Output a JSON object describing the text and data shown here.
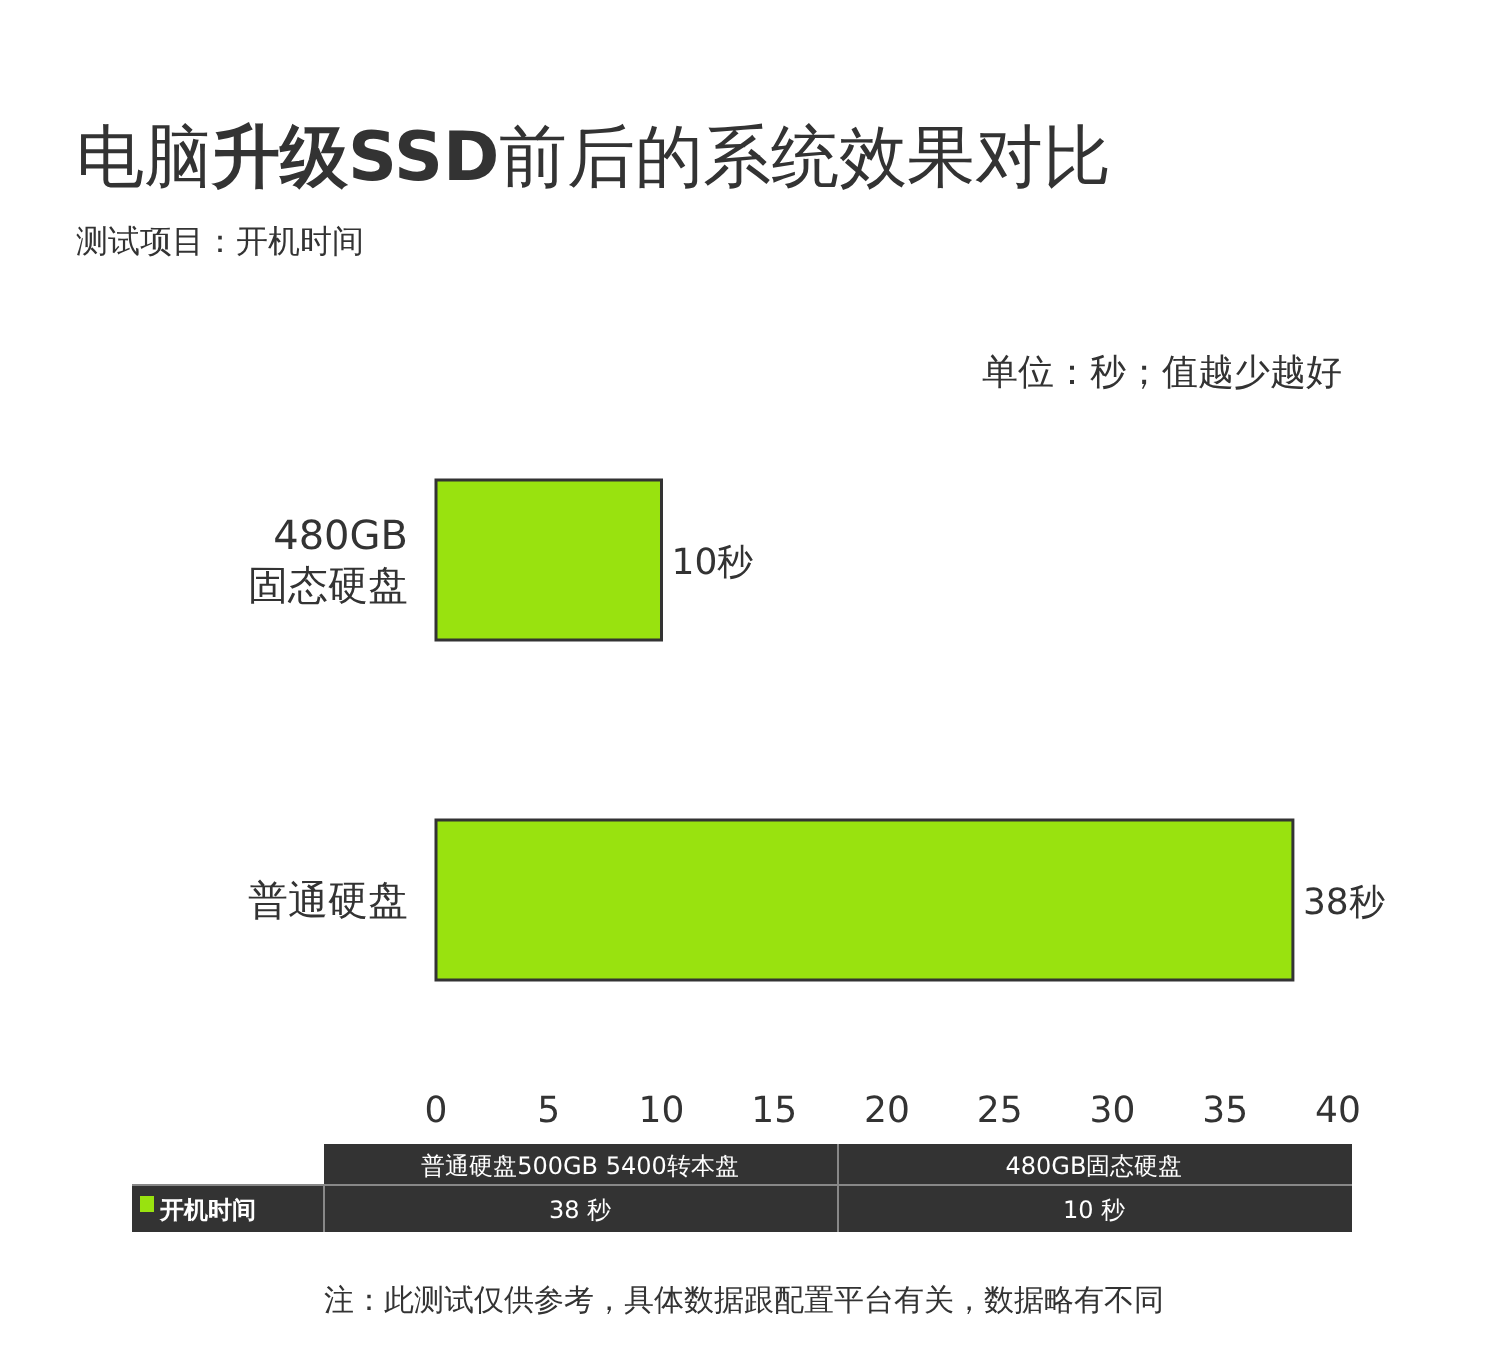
{
  "chart_data": {
    "type": "bar",
    "orientation": "horizontal",
    "title": "电脑**升级SSD**前后的系统效果对比",
    "subtitle": "测试项目：开机时间",
    "categories": [
      "480GB 固态硬盘",
      "普通硬盘"
    ],
    "values": [
      10,
      38
    ],
    "value_labels": [
      "10秒",
      "38秒"
    ],
    "color": "#99e20f",
    "xlim": [
      0,
      40
    ],
    "xticks": [
      0,
      5,
      10,
      15,
      20,
      25,
      30,
      35,
      40
    ],
    "grid": false,
    "annotations": [
      "单位：秒；值越少越好",
      "普通硬盘500GB  5400转本盘",
      "480GB固态硬盘",
      "开机时间",
      "38 秒",
      "10 秒",
      "注：此测试仅供参考，具体数据跟配置平台有关，数据略有不同"
    ]
  }
}
